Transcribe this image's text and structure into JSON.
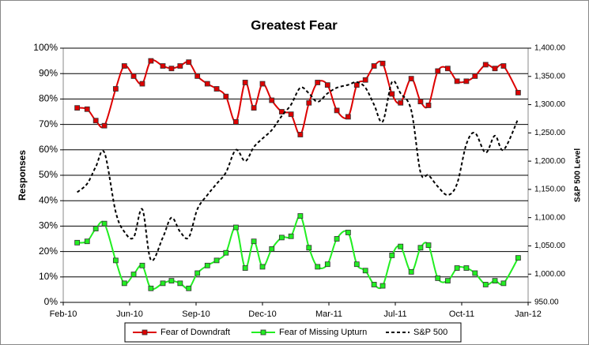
{
  "chart_data": {
    "type": "line",
    "title": "Greatest Fear",
    "y_label": "Responses",
    "y2_label": "S&P 500 Level",
    "x": [
      21,
      36,
      49,
      62,
      79,
      92,
      106,
      119,
      132,
      150,
      163,
      176,
      189,
      202,
      217,
      231,
      245,
      260,
      274,
      287,
      300,
      314,
      329,
      343,
      357,
      370,
      383,
      398,
      412,
      429,
      442,
      455,
      468,
      481,
      495,
      508,
      524,
      538,
      550,
      564,
      579,
      593,
      607,
      620,
      636,
      650,
      663,
      685
    ],
    "xlim": [
      0,
      700
    ],
    "xticks": [
      {
        "value": 0,
        "label": "Feb-10"
      },
      {
        "value": 100,
        "label": "Jun-10"
      },
      {
        "value": 200,
        "label": "Sep-10"
      },
      {
        "value": 300,
        "label": "Dec-10"
      },
      {
        "value": 400,
        "label": "Mar-11"
      },
      {
        "value": 500,
        "label": "Jul-11"
      },
      {
        "value": 600,
        "label": "Oct-11"
      },
      {
        "value": 700,
        "label": "Jan-12"
      }
    ],
    "ylim": [
      0,
      100
    ],
    "yticks": [
      {
        "value": 0,
        "label": "0%"
      },
      {
        "value": 10,
        "label": "10%"
      },
      {
        "value": 20,
        "label": "20%"
      },
      {
        "value": 30,
        "label": "30%"
      },
      {
        "value": 40,
        "label": "40%"
      },
      {
        "value": 50,
        "label": "50%"
      },
      {
        "value": 60,
        "label": "60%"
      },
      {
        "value": 70,
        "label": "70%"
      },
      {
        "value": 80,
        "label": "80%"
      },
      {
        "value": 90,
        "label": "90%"
      },
      {
        "value": 100,
        "label": "100%"
      }
    ],
    "y2lim": [
      950,
      1400
    ],
    "y2ticks": [
      {
        "value": 950,
        "label": "950.00"
      },
      {
        "value": 1000,
        "label": "1,000.00"
      },
      {
        "value": 1050,
        "label": "1,050.00"
      },
      {
        "value": 1100,
        "label": "1,100.00"
      },
      {
        "value": 1150,
        "label": "1,150.00"
      },
      {
        "value": 1200,
        "label": "1,200.00"
      },
      {
        "value": 1250,
        "label": "1,250.00"
      },
      {
        "value": 1300,
        "label": "1,300.00"
      },
      {
        "value": 1350,
        "label": "1,350.00"
      },
      {
        "value": 1400,
        "label": "1,400.00"
      }
    ],
    "grid": true,
    "legend": "bottom",
    "series": [
      {
        "name": "Fear of Downdraft",
        "color": "#dd0000",
        "marker": "square",
        "dashed": false,
        "values": [
          76.5,
          76,
          71.5,
          69.5,
          84,
          93,
          89,
          86,
          95,
          93,
          92,
          93,
          94.5,
          89,
          86,
          84,
          81,
          71,
          86.5,
          76.5,
          86,
          79.5,
          75,
          74,
          66,
          78.5,
          86.5,
          85.5,
          75.5,
          73,
          85.5,
          87.5,
          93,
          94,
          82,
          78.5,
          88,
          79,
          77.5,
          91,
          92,
          87,
          87,
          89,
          93.5,
          92,
          93,
          82.5
        ]
      },
      {
        "name": "Fear of Missing Upturn",
        "color": "#22ee22",
        "marker": "square",
        "dashed": false,
        "values": [
          23.5,
          24,
          29,
          31,
          16.5,
          7.5,
          11,
          14.5,
          5.5,
          7.5,
          8.5,
          7.5,
          5.5,
          11.5,
          14.5,
          16.5,
          19.5,
          29.5,
          13.5,
          24,
          14,
          21,
          25.5,
          26,
          34,
          21.5,
          14,
          15,
          25,
          27.5,
          15,
          12.5,
          7,
          6.5,
          18.5,
          22,
          12,
          21.5,
          22.5,
          9.5,
          8.5,
          13.5,
          13.5,
          11.5,
          7,
          8.5,
          7.5,
          17.5
        ]
      },
      {
        "name": "S&P 500",
        "color": "#000000",
        "marker": "none",
        "dashed": true,
        "axis": "y2",
        "values": [
          1145,
          1160,
          1190,
          1215,
          1110,
          1075,
          1065,
          1115,
          1025,
          1065,
          1100,
          1075,
          1065,
          1115,
          1140,
          1160,
          1180,
          1220,
          1200,
          1225,
          1240,
          1255,
          1280,
          1300,
          1330,
          1320,
          1305,
          1320,
          1330,
          1335,
          1340,
          1330,
          1300,
          1270,
          1340,
          1320,
          1290,
          1180,
          1175,
          1155,
          1140,
          1160,
          1230,
          1250,
          1215,
          1245,
          1220,
          1275
        ]
      }
    ]
  }
}
